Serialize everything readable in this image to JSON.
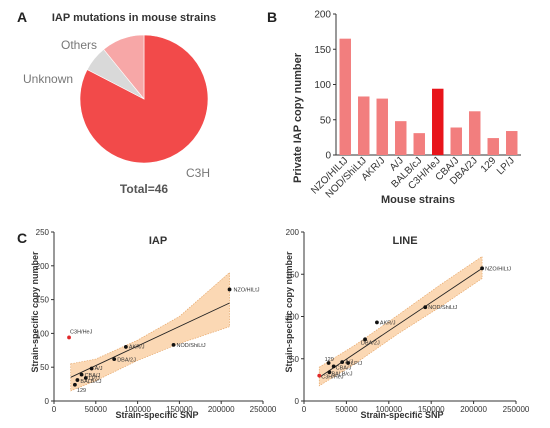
{
  "panels": {
    "a": "A",
    "b": "B",
    "c": "C"
  },
  "colors": {
    "pie_c3h": "#f24a4a",
    "pie_unknown": "#d9d9d9",
    "pie_others": "#f7a7a7",
    "bar": "#f27e7e",
    "bar_highlight": "#e8141a",
    "band": "#fbd8b4",
    "band_edge": "#e6a86c",
    "point": "#111111",
    "point_highlight": "#e0282a"
  },
  "chart_data": [
    {
      "id": "pie",
      "type": "pie",
      "title": "IAP mutations in mouse strains",
      "slices": [
        {
          "label": "C3H",
          "value": 38
        },
        {
          "label": "Unknown",
          "value": 3
        },
        {
          "label": "Others",
          "value": 5
        }
      ],
      "total_label": "Total=46"
    },
    {
      "id": "bar",
      "type": "bar",
      "categories": [
        "NZO/HILtJ",
        "NOD/ShiLtJ",
        "AKR/J",
        "A/J",
        "BALB/cJ",
        "C3H/HeJ",
        "CBA/J",
        "DBA/2J",
        "129",
        "LP/J"
      ],
      "values": [
        165,
        83,
        80,
        48,
        31,
        94,
        39,
        62,
        24,
        34
      ],
      "highlight": "C3H/HeJ",
      "xlabel": "Mouse strains",
      "ylabel": "Private IAP copy number",
      "ylim": [
        0,
        200
      ],
      "yticks": [
        "0",
        "50",
        "100",
        "150",
        "200"
      ]
    },
    {
      "id": "iap",
      "type": "scatter",
      "title": "IAP",
      "xlabel": "Strain-specific SNP",
      "ylabel": "Strain-specific copy number",
      "xlim": [
        0,
        250000
      ],
      "ylim": [
        0,
        250
      ],
      "xticks": [
        "0",
        "50000",
        "100000",
        "150000",
        "200000",
        "250000"
      ],
      "yticks": [
        "0",
        "50",
        "100",
        "150",
        "200",
        "250"
      ],
      "points": [
        {
          "label": "NZO/HILtJ",
          "x": 210000,
          "y": 165
        },
        {
          "label": "NOD/ShiLtJ",
          "x": 143000,
          "y": 83
        },
        {
          "label": "AKR/J",
          "x": 86000,
          "y": 80
        },
        {
          "label": "DBA/2J",
          "x": 72000,
          "y": 62
        },
        {
          "label": "A/J",
          "x": 45000,
          "y": 48
        },
        {
          "label": "CBA/J",
          "x": 33000,
          "y": 39
        },
        {
          "label": "LP/J",
          "x": 38000,
          "y": 34
        },
        {
          "label": "BALB/cJ",
          "x": 28000,
          "y": 31
        },
        {
          "label": "129",
          "x": 25000,
          "y": 24
        },
        {
          "label": "C3H/HeJ",
          "x": 18000,
          "y": 94,
          "highlight": true
        }
      ],
      "fit": {
        "x": [
          20000,
          210000
        ],
        "y": [
          35,
          145
        ]
      },
      "band": {
        "x": [
          20000,
          50000,
          100000,
          150000,
          210000
        ],
        "upper": [
          55,
          62,
          90,
          125,
          190
        ],
        "lower": [
          15,
          30,
          60,
          85,
          110
        ]
      }
    },
    {
      "id": "line",
      "type": "scatter",
      "title": "LINE",
      "xlabel": "Strain-specific SNP",
      "ylabel": "Strain-specific copy number",
      "xlim": [
        0,
        250000
      ],
      "ylim": [
        0,
        200
      ],
      "xticks": [
        "0",
        "50000",
        "100000",
        "150000",
        "200000",
        "250000"
      ],
      "yticks": [
        "0",
        "50",
        "100",
        "150",
        "200"
      ],
      "points": [
        {
          "label": "NZO/HILtJ",
          "x": 210000,
          "y": 157
        },
        {
          "label": "NOD/ShiLtJ",
          "x": 143000,
          "y": 111
        },
        {
          "label": "AKR/J",
          "x": 86000,
          "y": 93
        },
        {
          "label": "DBA/2J",
          "x": 72000,
          "y": 73
        },
        {
          "label": "129",
          "x": 29000,
          "y": 45
        },
        {
          "label": "CBA/J",
          "x": 35000,
          "y": 41
        },
        {
          "label": "A/J",
          "x": 45000,
          "y": 46
        },
        {
          "label": "LP/J",
          "x": 52000,
          "y": 45
        },
        {
          "label": "BALB/cJ",
          "x": 30000,
          "y": 34
        },
        {
          "label": "C3H/HeJ",
          "x": 18000,
          "y": 30,
          "highlight": true
        }
      ],
      "fit": {
        "x": [
          18000,
          210000
        ],
        "y": [
          28,
          157
        ]
      },
      "band": {
        "x": [
          18000,
          60000,
          110000,
          160000,
          210000
        ],
        "upper": [
          40,
          66,
          101,
          137,
          171
        ],
        "lower": [
          18,
          44,
          79,
          111,
          145
        ]
      }
    }
  ]
}
